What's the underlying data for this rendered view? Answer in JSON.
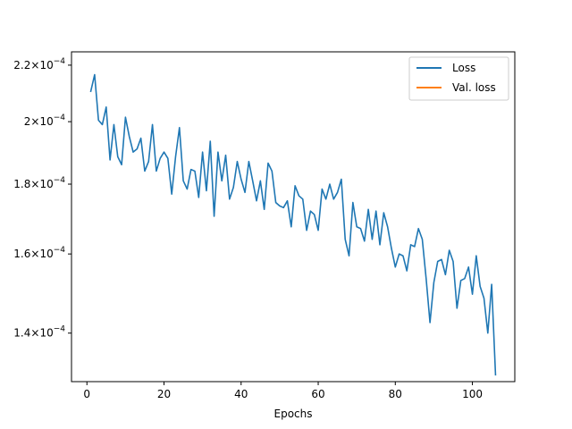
{
  "chart_data": {
    "type": "line",
    "title": "",
    "xlabel": "Epochs",
    "ylabel": "",
    "xlim": [
      -4,
      111
    ],
    "ylim": [
      0.000129,
      0.000225
    ],
    "yscale": "log",
    "grid": false,
    "legend_position": "top-right",
    "x_ticks": [
      {
        "value": 0,
        "label": "0"
      },
      {
        "value": 20,
        "label": "20"
      },
      {
        "value": 40,
        "label": "40"
      },
      {
        "value": 60,
        "label": "60"
      },
      {
        "value": 80,
        "label": "80"
      },
      {
        "value": 100,
        "label": "100"
      }
    ],
    "y_ticks": [
      {
        "value": 0.00014,
        "mantissa": "1.4",
        "exponent": "−4"
      },
      {
        "value": 0.00016,
        "mantissa": "1.6",
        "exponent": "−4"
      },
      {
        "value": 0.00018,
        "mantissa": "1.8",
        "exponent": "−4"
      },
      {
        "value": 0.0002,
        "mantissa": "2",
        "exponent": "−4"
      },
      {
        "value": 0.00022,
        "mantissa": "2.2",
        "exponent": "−4"
      }
    ],
    "y_tick_base": "10",
    "series": [
      {
        "name": "Loss",
        "color": "#1f77b4",
        "x": [
          1,
          2,
          3,
          4,
          5,
          6,
          7,
          8,
          9,
          10,
          11,
          12,
          13,
          14,
          15,
          16,
          17,
          18,
          19,
          20,
          21,
          22,
          23,
          24,
          25,
          26,
          27,
          28,
          29,
          30,
          31,
          32,
          33,
          34,
          35,
          36,
          37,
          38,
          39,
          40,
          41,
          42,
          43,
          44,
          45,
          46,
          47,
          48,
          49,
          50,
          51,
          52,
          53,
          54,
          55,
          56,
          57,
          58,
          59,
          60,
          61,
          62,
          63,
          64,
          65,
          66,
          67,
          68,
          69,
          70,
          71,
          72,
          73,
          74,
          75,
          76,
          77,
          78,
          79,
          80,
          81,
          82,
          83,
          84,
          85,
          86,
          87,
          88,
          89,
          90,
          91,
          92,
          93,
          94,
          95,
          96,
          97,
          98,
          99,
          100,
          101,
          102,
          103,
          104,
          105,
          106
        ],
        "y": [
          0.0002105,
          0.0002165,
          0.0002005,
          0.000199,
          0.000205,
          0.0001875,
          0.000199,
          0.0001885,
          0.000186,
          0.0002015,
          0.000195,
          0.00019,
          0.000191,
          0.0001945,
          0.000184,
          0.000187,
          0.000199,
          0.000184,
          0.000188,
          0.00019,
          0.000188,
          0.000177,
          0.0001885,
          0.000198,
          0.000181,
          0.0001785,
          0.0001845,
          0.000184,
          0.000176,
          0.00019,
          0.000178,
          0.0001935,
          0.0001705,
          0.00019,
          0.000181,
          0.000189,
          0.0001755,
          0.000179,
          0.000187,
          0.0001815,
          0.0001775,
          0.000187,
          0.000181,
          0.000175,
          0.000181,
          0.0001725,
          0.0001865,
          0.000184,
          0.0001745,
          0.0001735,
          0.000173,
          0.000175,
          0.0001675,
          0.0001795,
          0.0001765,
          0.0001755,
          0.0001665,
          0.000172,
          0.000171,
          0.0001665,
          0.0001785,
          0.0001755,
          0.00018,
          0.0001755,
          0.0001775,
          0.0001815,
          0.000164,
          0.0001595,
          0.0001745,
          0.0001675,
          0.000167,
          0.0001635,
          0.0001725,
          0.000164,
          0.000172,
          0.0001625,
          0.0001715,
          0.0001675,
          0.0001615,
          0.0001565,
          0.00016,
          0.0001595,
          0.0001555,
          0.0001625,
          0.000162,
          0.000167,
          0.000164,
          0.0001535,
          0.0001425,
          0.0001525,
          0.000158,
          0.0001585,
          0.0001545,
          0.000161,
          0.000158,
          0.000146,
          0.000153,
          0.0001535,
          0.0001565,
          0.0001495,
          0.0001595,
          0.0001515,
          0.0001485,
          0.00014,
          0.000152,
          0.0001305
        ]
      },
      {
        "name": "Val. loss",
        "color": "#ff7f0e",
        "x": [],
        "y": []
      }
    ]
  }
}
